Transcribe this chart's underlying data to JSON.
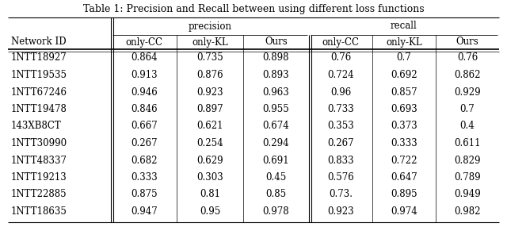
{
  "title": "Table 1: Precision and Recall between using different loss functions",
  "network_id_label": "Network ID",
  "group_labels": [
    "precision",
    "recall"
  ],
  "col_labels": [
    "only-CC",
    "only-KL",
    "Ours",
    "only-CC",
    "only-KL",
    "Ours"
  ],
  "rows": [
    {
      "id": "1NTT18927",
      "precision": [
        "0.864",
        "0.735",
        "0.898"
      ],
      "recall": [
        "0.76",
        "0.7",
        "0.76"
      ]
    },
    {
      "id": "1NTT19535",
      "precision": [
        "0.913",
        "0.876",
        "0.893"
      ],
      "recall": [
        "0.724",
        "0.692",
        "0.862"
      ]
    },
    {
      "id": "1NTT67246",
      "precision": [
        "0.946",
        "0.923",
        "0.963"
      ],
      "recall": [
        "0.96",
        "0.857",
        "0.929"
      ]
    },
    {
      "id": "1NTT19478",
      "precision": [
        "0.846",
        "0.897",
        "0.955"
      ],
      "recall": [
        "0.733",
        "0.693",
        "0.7"
      ]
    },
    {
      "id": "143XB8CT",
      "precision": [
        "0.667",
        "0.621",
        "0.674"
      ],
      "recall": [
        "0.353",
        "0.373",
        "0.4"
      ]
    },
    {
      "id": "1NTT30990",
      "precision": [
        "0.267",
        "0.254",
        "0.294"
      ],
      "recall": [
        "0.267",
        "0.333",
        "0.611"
      ]
    },
    {
      "id": "1NTT48337",
      "precision": [
        "0.682",
        "0.629",
        "0.691"
      ],
      "recall": [
        "0.833",
        "0.722",
        "0.829"
      ]
    },
    {
      "id": "1NTT19213",
      "precision": [
        "0.333",
        "0.303",
        "0.45"
      ],
      "recall": [
        "0.576",
        "0.647",
        "0.789"
      ]
    },
    {
      "id": "1NTT22885",
      "precision": [
        "0.875",
        "0.81",
        "0.85"
      ],
      "recall": [
        "0.73.",
        "0.895",
        "0.949"
      ]
    },
    {
      "id": "1NTT18635",
      "precision": [
        "0.947",
        "0.95",
        "0.978"
      ],
      "recall": [
        "0.923",
        "0.974",
        "0.982"
      ]
    }
  ],
  "figsize": [
    6.4,
    2.86
  ],
  "dpi": 100,
  "font_size": 8.5,
  "title_font_size": 9
}
